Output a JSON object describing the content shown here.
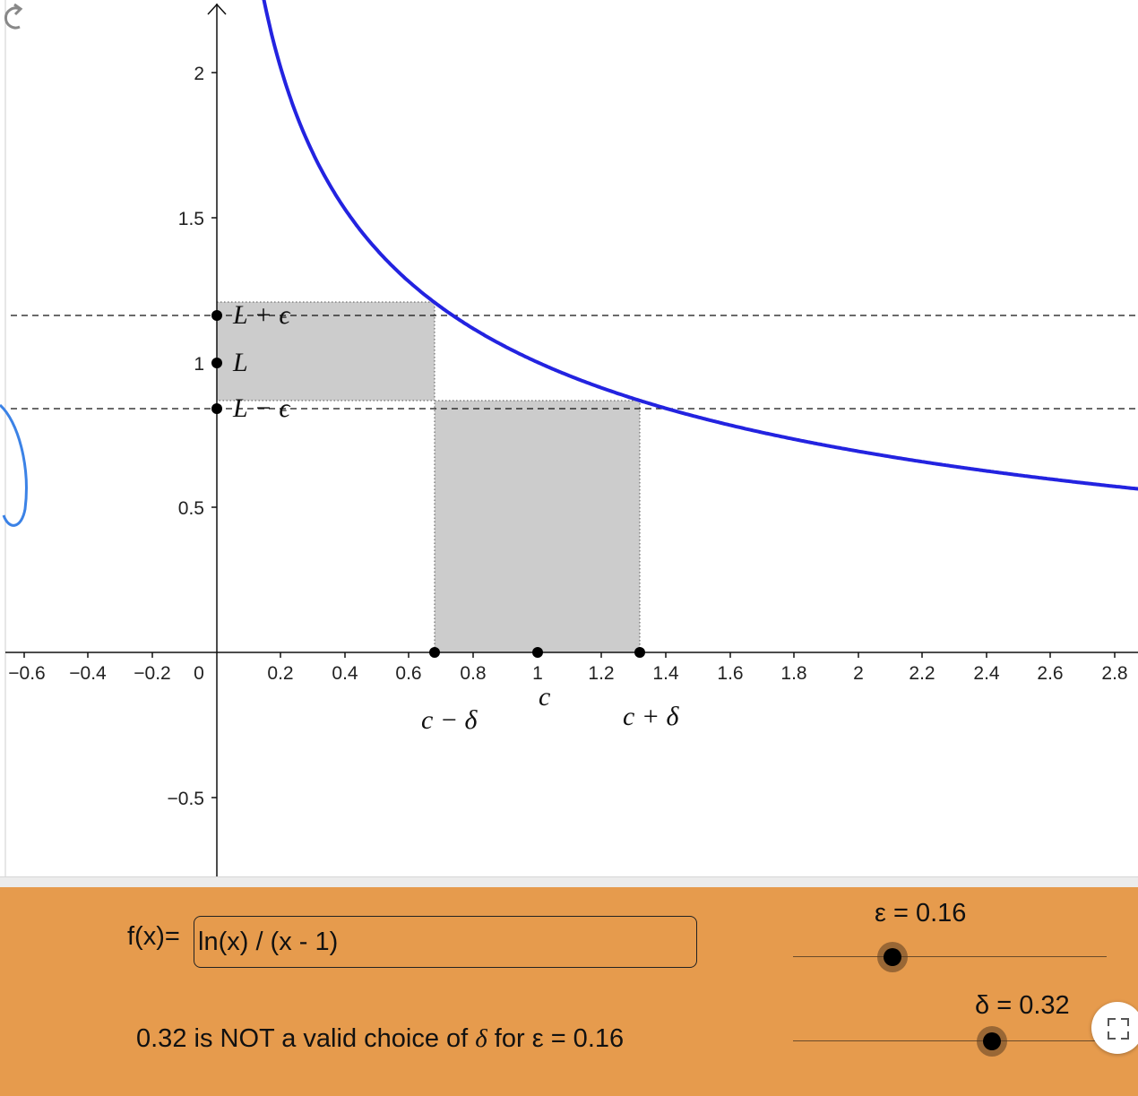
{
  "graph": {
    "y_tick_labels": [
      "2",
      "1.5",
      "1",
      "0.5",
      "−0.5"
    ],
    "x_tick_labels_neg": [
      "−0.6",
      "−0.4",
      "−0.2",
      "0"
    ],
    "x_tick_labels_pos": [
      "0.2",
      "0.4",
      "0.6",
      "0.8",
      "1",
      "1.2",
      "1.4",
      "1.6",
      "1.8",
      "2",
      "2.2",
      "2.4",
      "2.6",
      "2.8"
    ],
    "labels": {
      "L_plus_eps": "L + ϵ",
      "L": "L",
      "L_minus_eps": "L − ϵ",
      "c": "c",
      "c_minus_delta": "c − δ",
      "c_plus_delta": "c + δ"
    },
    "curve_color": "#2323e0",
    "reset_icon": "refresh-icon"
  },
  "controls": {
    "function_label": "f(x)=",
    "function_value": "ln(x) / (x - 1)",
    "epsilon_label": "ε = 0.16",
    "epsilon_value": 0.16,
    "delta_label": "δ = 0.32",
    "delta_value": 0.32,
    "status_prefix": "0.32 is NOT a valid choice of ",
    "status_delta": "δ",
    "status_suffix": " for ε = 0.16",
    "panel_color": "#e69b4d",
    "fullscreen_icon": "fullscreen-icon"
  }
}
